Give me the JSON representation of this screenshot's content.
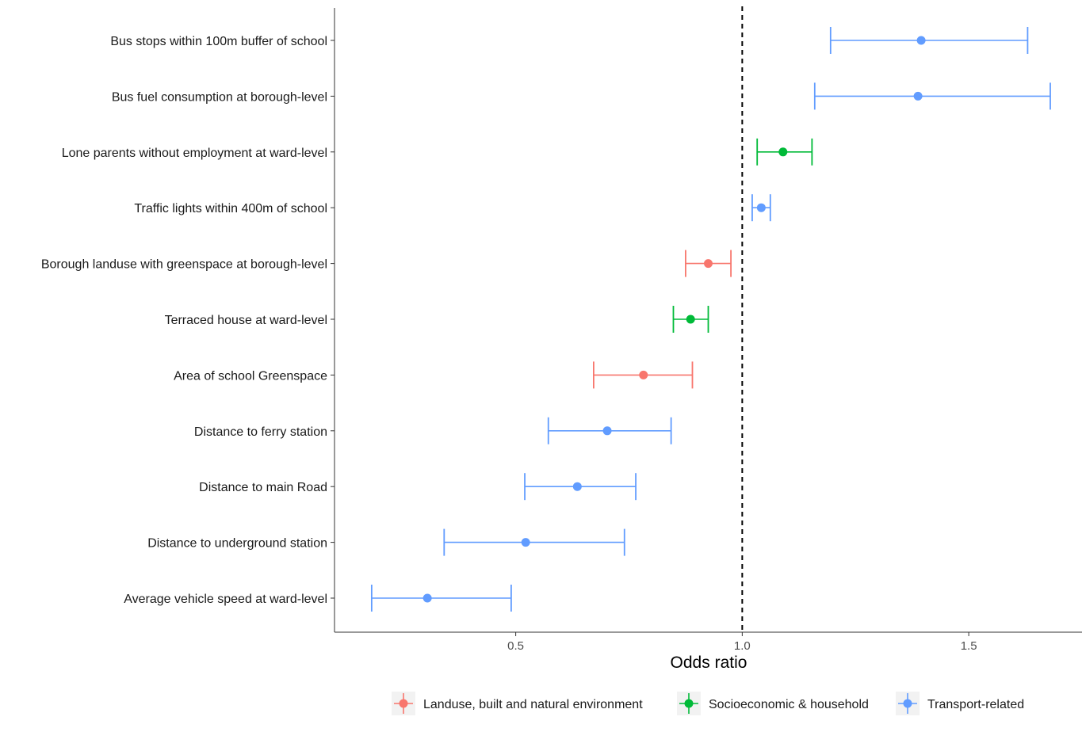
{
  "chart_data": {
    "type": "forest",
    "title": "",
    "xlabel": "Odds ratio",
    "ylabel": "",
    "xlim": [
      0.1,
      1.75
    ],
    "xticks": [
      0.5,
      1.0,
      1.5
    ],
    "xtick_labels": [
      "0.5",
      "1.0",
      "1.5"
    ],
    "reference_line": 1.0,
    "grid": false,
    "legend_position": "bottom",
    "categories": [
      {
        "label": "Bus stops within 100m buffer of school",
        "estimate": 1.395,
        "lower": 1.195,
        "upper": 1.63,
        "group": "Transport-related"
      },
      {
        "label": "Bus fuel consumption at borough-level",
        "estimate": 1.388,
        "lower": 1.16,
        "upper": 1.68,
        "group": "Transport-related"
      },
      {
        "label": "Lone parents without employment at ward-level",
        "estimate": 1.09,
        "lower": 1.033,
        "upper": 1.154,
        "group": "Socioeconomic & household"
      },
      {
        "label": "Traffic lights within 400m of school",
        "estimate": 1.042,
        "lower": 1.022,
        "upper": 1.062,
        "group": "Transport-related"
      },
      {
        "label": "Borough landuse with greenspace at borough-level",
        "estimate": 0.925,
        "lower": 0.875,
        "upper": 0.975,
        "group": "Landuse, built and natural environment"
      },
      {
        "label": "Terraced house at ward-level",
        "estimate": 0.886,
        "lower": 0.848,
        "upper": 0.925,
        "group": "Socioeconomic & household"
      },
      {
        "label": "Area of school Greenspace",
        "estimate": 0.782,
        "lower": 0.672,
        "upper": 0.89,
        "group": "Landuse, built and natural environment"
      },
      {
        "label": "Distance to ferry station",
        "estimate": 0.702,
        "lower": 0.572,
        "upper": 0.843,
        "group": "Transport-related"
      },
      {
        "label": "Distance to main Road",
        "estimate": 0.636,
        "lower": 0.52,
        "upper": 0.765,
        "group": "Transport-related"
      },
      {
        "label": "Distance to underground station",
        "estimate": 0.522,
        "lower": 0.342,
        "upper": 0.74,
        "group": "Transport-related"
      },
      {
        "label": "Average vehicle speed at ward-level",
        "estimate": 0.305,
        "lower": 0.182,
        "upper": 0.49,
        "group": "Transport-related"
      }
    ],
    "legend": [
      {
        "name": "Landuse, built and natural environment",
        "color": "#F8766D"
      },
      {
        "name": "Socioeconomic & household",
        "color": "#00BA38"
      },
      {
        "name": "Transport-related",
        "color": "#619CFF"
      }
    ]
  }
}
